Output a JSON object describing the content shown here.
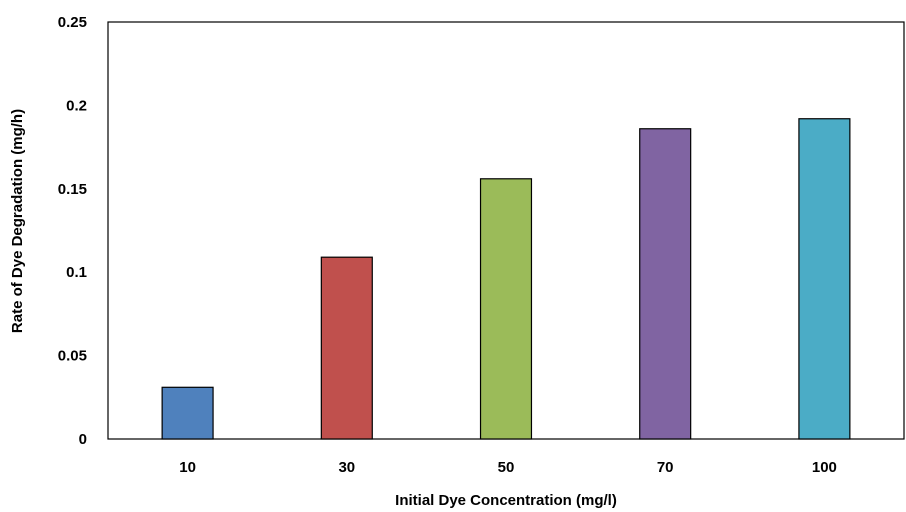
{
  "chart_data": {
    "type": "bar",
    "title": "",
    "xlabel": "Initial Dye Concentration (mg/l)",
    "ylabel": "Rate of Dye Degradation (mg/h)",
    "categories": [
      "10",
      "30",
      "50",
      "70",
      "100"
    ],
    "values": [
      0.031,
      0.109,
      0.156,
      0.186,
      0.192
    ],
    "colors": [
      "#4f81bd",
      "#c0504d",
      "#9bbb59",
      "#8064a2",
      "#4bacc6"
    ],
    "ylim": [
      0,
      0.25
    ],
    "yticks": [
      "0",
      "0.05",
      "0.1",
      "0.15",
      "0.2",
      "0.25"
    ],
    "grid": false,
    "legend": "none"
  }
}
